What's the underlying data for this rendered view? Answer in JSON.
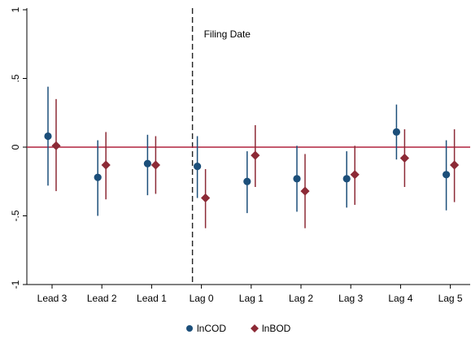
{
  "chart_data": {
    "type": "scatter",
    "title": "",
    "xlabel": "",
    "ylabel": "",
    "categories": [
      "Lead 3",
      "Lead 2",
      "Lead 1",
      "Lag 0",
      "Lag 1",
      "Lag 2",
      "Lag 3",
      "Lag 4",
      "Lag 5"
    ],
    "ylim": [
      -1,
      1
    ],
    "yticks": [
      -1,
      -0.5,
      0,
      0.5,
      1
    ],
    "ytick_labels": [
      "-1",
      "-.5",
      "0",
      ".5",
      "1"
    ],
    "reference_line": {
      "y": 0,
      "color": "#b0233f"
    },
    "event_line": {
      "category": "Lag 0",
      "label": "Filing Date",
      "style": "dashed"
    },
    "series": [
      {
        "name": "lnCOD",
        "marker": "circle",
        "color": "#1c4f7a",
        "values": [
          0.08,
          -0.22,
          -0.12,
          -0.14,
          -0.25,
          -0.23,
          -0.23,
          0.11,
          -0.2
        ],
        "ci_low": [
          -0.28,
          -0.5,
          -0.35,
          -0.37,
          -0.48,
          -0.47,
          -0.44,
          -0.09,
          -0.46
        ],
        "ci_high": [
          0.44,
          0.05,
          0.09,
          0.08,
          -0.03,
          0.01,
          -0.03,
          0.31,
          0.05
        ]
      },
      {
        "name": "lnBOD",
        "marker": "diamond",
        "color": "#8c2a36",
        "values": [
          0.01,
          -0.13,
          -0.13,
          -0.37,
          -0.06,
          -0.32,
          -0.2,
          -0.08,
          -0.13
        ],
        "ci_low": [
          -0.32,
          -0.38,
          -0.34,
          -0.59,
          -0.29,
          -0.59,
          -0.42,
          -0.29,
          -0.4
        ],
        "ci_high": [
          0.35,
          0.11,
          0.08,
          -0.16,
          0.16,
          -0.05,
          0.01,
          0.13,
          0.13
        ]
      }
    ],
    "legend": {
      "position": "bottom-center"
    },
    "grid": false
  }
}
